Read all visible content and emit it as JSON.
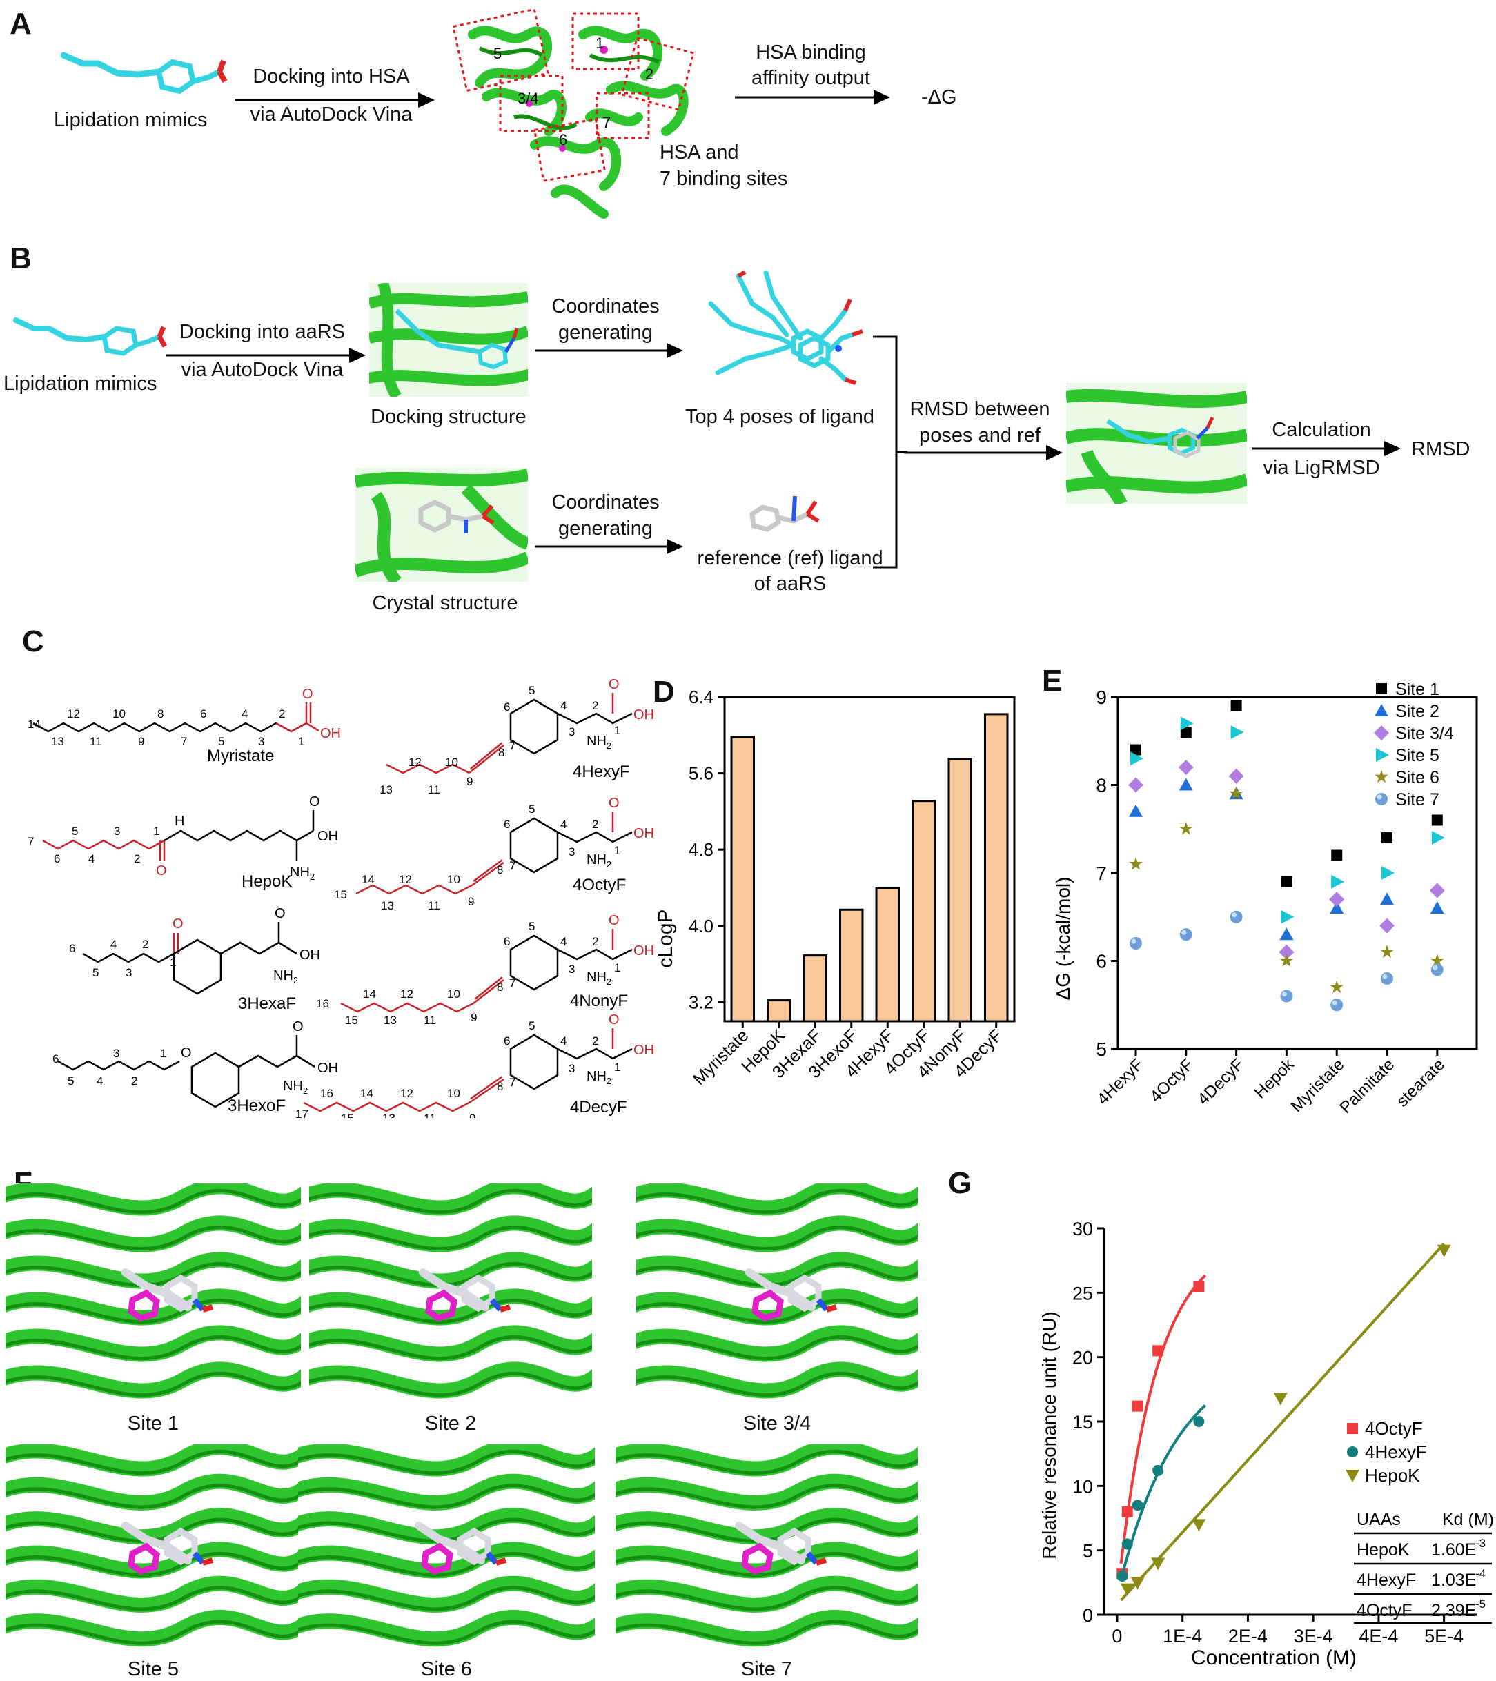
{
  "panels": {
    "a": "A",
    "b": "B",
    "c": "C",
    "d": "D",
    "e": "E",
    "f": "F",
    "g": "G"
  },
  "panel_a": {
    "mimic_label": "Lipidation mimics",
    "dock_line1": "Docking into HSA",
    "dock_line2": "via AutoDock Vina",
    "site_numbers": [
      "1",
      "2",
      "3/4",
      "5",
      "6",
      "7"
    ],
    "hsa_line1": "HSA and",
    "hsa_line2": "7 binding sites",
    "out_line1": "HSA binding",
    "out_line2": "affinity output",
    "result": "-ΔG"
  },
  "panel_b": {
    "mimic_label": "Lipidation mimics",
    "dock_line1": "Docking into aaRS",
    "dock_line2": "via AutoDock Vina",
    "docking_structure": "Docking structure",
    "coord1_line1": "Coordinates",
    "coord1_line2": "generating",
    "top_poses": "Top 4 poses of ligand",
    "crystal_structure": "Crystal structure",
    "coord2_line1": "Coordinates",
    "coord2_line2": "generating",
    "ref_line1": "reference (ref) ligand",
    "ref_line2": "of aaRS",
    "rmsd_line1": "RMSD between",
    "rmsd_line2": "poses and ref",
    "calc_line1": "Calculation",
    "calc_line2": "via LigRMSD",
    "result": "RMSD"
  },
  "panel_c": {
    "compounds": [
      "Myristate",
      "HepoK",
      "3HexaF",
      "3HexoF",
      "4HexyF",
      "4OctyF",
      "4NonyF",
      "4DecyF"
    ],
    "oh": "OH",
    "nh2": "NH",
    "nh2_sub": "2",
    "h": "H",
    "o": "O"
  },
  "chart_d": {
    "type": "bar",
    "ylabel": "cLogP",
    "ylim": [
      3.0,
      6.4
    ],
    "yticks": [
      "3.2",
      "4.0",
      "4.8",
      "5.6",
      "6.4"
    ],
    "categories": [
      "Myristate",
      "HepoK",
      "3HexaF",
      "3HexoF",
      "4HexyF",
      "4OctyF",
      "4NonyF",
      "4DecyF"
    ],
    "values": [
      5.98,
      3.22,
      3.69,
      4.17,
      4.4,
      5.31,
      5.75,
      6.22
    ],
    "bar_color": "#f9c89b"
  },
  "chart_data": [
    {
      "type": "bar",
      "ylabel": "cLogP",
      "ylim": [
        3.0,
        6.4
      ],
      "categories": [
        "Myristate",
        "HepoK",
        "3HexaF",
        "3HexoF",
        "4HexyF",
        "4OctyF",
        "4NonyF",
        "4DecyF"
      ],
      "values": [
        5.98,
        3.22,
        3.69,
        4.17,
        4.4,
        5.31,
        5.75,
        6.22
      ]
    },
    {
      "type": "scatter",
      "ylabel": "ΔG (-kcal/mol)",
      "ylim": [
        5,
        9
      ],
      "categories": [
        "4HexyF",
        "4OctyF",
        "4DecyF",
        "Hepok",
        "Myristate",
        "Palmitate",
        "stearate"
      ],
      "series": [
        {
          "name": "Site 1",
          "values": [
            8.4,
            8.6,
            8.9,
            6.9,
            7.2,
            7.4,
            7.6
          ]
        },
        {
          "name": "Site 2",
          "values": [
            7.7,
            8.0,
            7.9,
            6.3,
            6.6,
            6.7,
            6.6
          ]
        },
        {
          "name": "Site 3/4",
          "values": [
            8.0,
            8.2,
            8.1,
            6.1,
            6.7,
            6.4,
            6.8
          ]
        },
        {
          "name": "Site 5",
          "values": [
            8.3,
            8.7,
            8.6,
            6.5,
            6.9,
            7.0,
            7.4
          ]
        },
        {
          "name": "Site 6",
          "values": [
            7.1,
            7.5,
            7.9,
            6.0,
            5.7,
            6.1,
            6.0
          ]
        },
        {
          "name": "Site 7",
          "values": [
            6.2,
            6.3,
            6.5,
            5.6,
            5.5,
            5.8,
            5.9
          ]
        }
      ]
    },
    {
      "type": "scatter",
      "xlabel": "Concentration (M)",
      "ylabel": "Relative resonance unit (RU)",
      "xlim": [
        -2e-05,
        0.00055
      ],
      "ylim": [
        0,
        30
      ],
      "series": [
        {
          "name": "4OctyF",
          "x": [
            7.8e-06,
            1.56e-05,
            3.13e-05,
            6.25e-05,
            0.000125
          ],
          "y": [
            3.2,
            8.0,
            16.2,
            20.5,
            25.5
          ]
        },
        {
          "name": "4HexyF",
          "x": [
            7.8e-06,
            1.56e-05,
            3.13e-05,
            6.25e-05,
            0.000125
          ],
          "y": [
            3.0,
            5.5,
            8.5,
            11.2,
            15.0
          ]
        },
        {
          "name": "HepoK",
          "x": [
            1.56e-05,
            3.13e-05,
            6.25e-05,
            0.000125,
            0.00025,
            0.0005
          ],
          "y": [
            2.0,
            2.5,
            4.0,
            7.0,
            16.8,
            28.3
          ]
        }
      ]
    }
  ],
  "chart_e": {
    "ylabel": "ΔG (-kcal/mol)",
    "ylim": [
      5,
      9
    ],
    "yticks": [
      "5",
      "6",
      "7",
      "8",
      "9"
    ],
    "categories": [
      "4HexyF",
      "4OctyF",
      "4DecyF",
      "Hepok",
      "Myristate",
      "Palmitate",
      "stearate"
    ],
    "series": [
      {
        "name": "Site 1",
        "marker": "square",
        "color": "#000000",
        "values": [
          8.4,
          8.6,
          8.9,
          6.9,
          7.2,
          7.4,
          7.6
        ]
      },
      {
        "name": "Site 2",
        "marker": "triangle-up",
        "color": "#1f6fd6",
        "values": [
          7.7,
          8.0,
          7.9,
          6.3,
          6.6,
          6.7,
          6.6
        ]
      },
      {
        "name": "Site 3/4",
        "marker": "diamond",
        "color": "#b07ee0",
        "values": [
          8.0,
          8.2,
          8.1,
          6.1,
          6.7,
          6.4,
          6.8
        ]
      },
      {
        "name": "Site 5",
        "marker": "triangle-right",
        "color": "#19c8d2",
        "values": [
          8.3,
          8.7,
          8.6,
          6.5,
          6.9,
          7.0,
          7.4
        ]
      },
      {
        "name": "Site 6",
        "marker": "star",
        "color": "#8e8a18",
        "values": [
          7.1,
          7.5,
          7.9,
          6.0,
          5.7,
          6.1,
          6.0
        ]
      },
      {
        "name": "Site 7",
        "marker": "sphere",
        "color": "#6c9fd8",
        "values": [
          6.2,
          6.3,
          6.5,
          5.6,
          5.5,
          5.8,
          5.9
        ]
      }
    ]
  },
  "panel_f": {
    "sites": [
      "Site 1",
      "Site 2",
      "Site 3/4",
      "Site 5",
      "Site 6",
      "Site 7"
    ]
  },
  "chart_g": {
    "xlabel": "Concentration (M)",
    "ylabel": "Relative resonance unit (RU)",
    "xticks": [
      "0",
      "1E-4",
      "2E-4",
      "3E-4",
      "4E-4",
      "5E-4"
    ],
    "yticks": [
      "0",
      "5",
      "10",
      "15",
      "20",
      "25",
      "30"
    ],
    "series": [
      {
        "name": "4OctyF",
        "marker": "square",
        "color": "#ef3b3b"
      },
      {
        "name": "4HexyF",
        "marker": "circle",
        "color": "#137f7f"
      },
      {
        "name": "HepoK",
        "marker": "triangle-down",
        "color": "#8b8a12"
      }
    ],
    "table": {
      "headers": [
        "UAAs",
        "Kd (M)"
      ],
      "rows": [
        {
          "uaa": "HepoK",
          "kd": "1.60E",
          "exp": "-3"
        },
        {
          "uaa": "4HexyF",
          "kd": "1.03E",
          "exp": "-4"
        },
        {
          "uaa": "4OctyF",
          "kd": "2.39E",
          "exp": "-5"
        }
      ]
    }
  },
  "colors": {
    "protein": "#2fc52f",
    "ligand_cyan": "#35d3e0",
    "red_box": "#e01a1a",
    "magenta": "#e020c8",
    "chain_red": "#c9232a"
  }
}
